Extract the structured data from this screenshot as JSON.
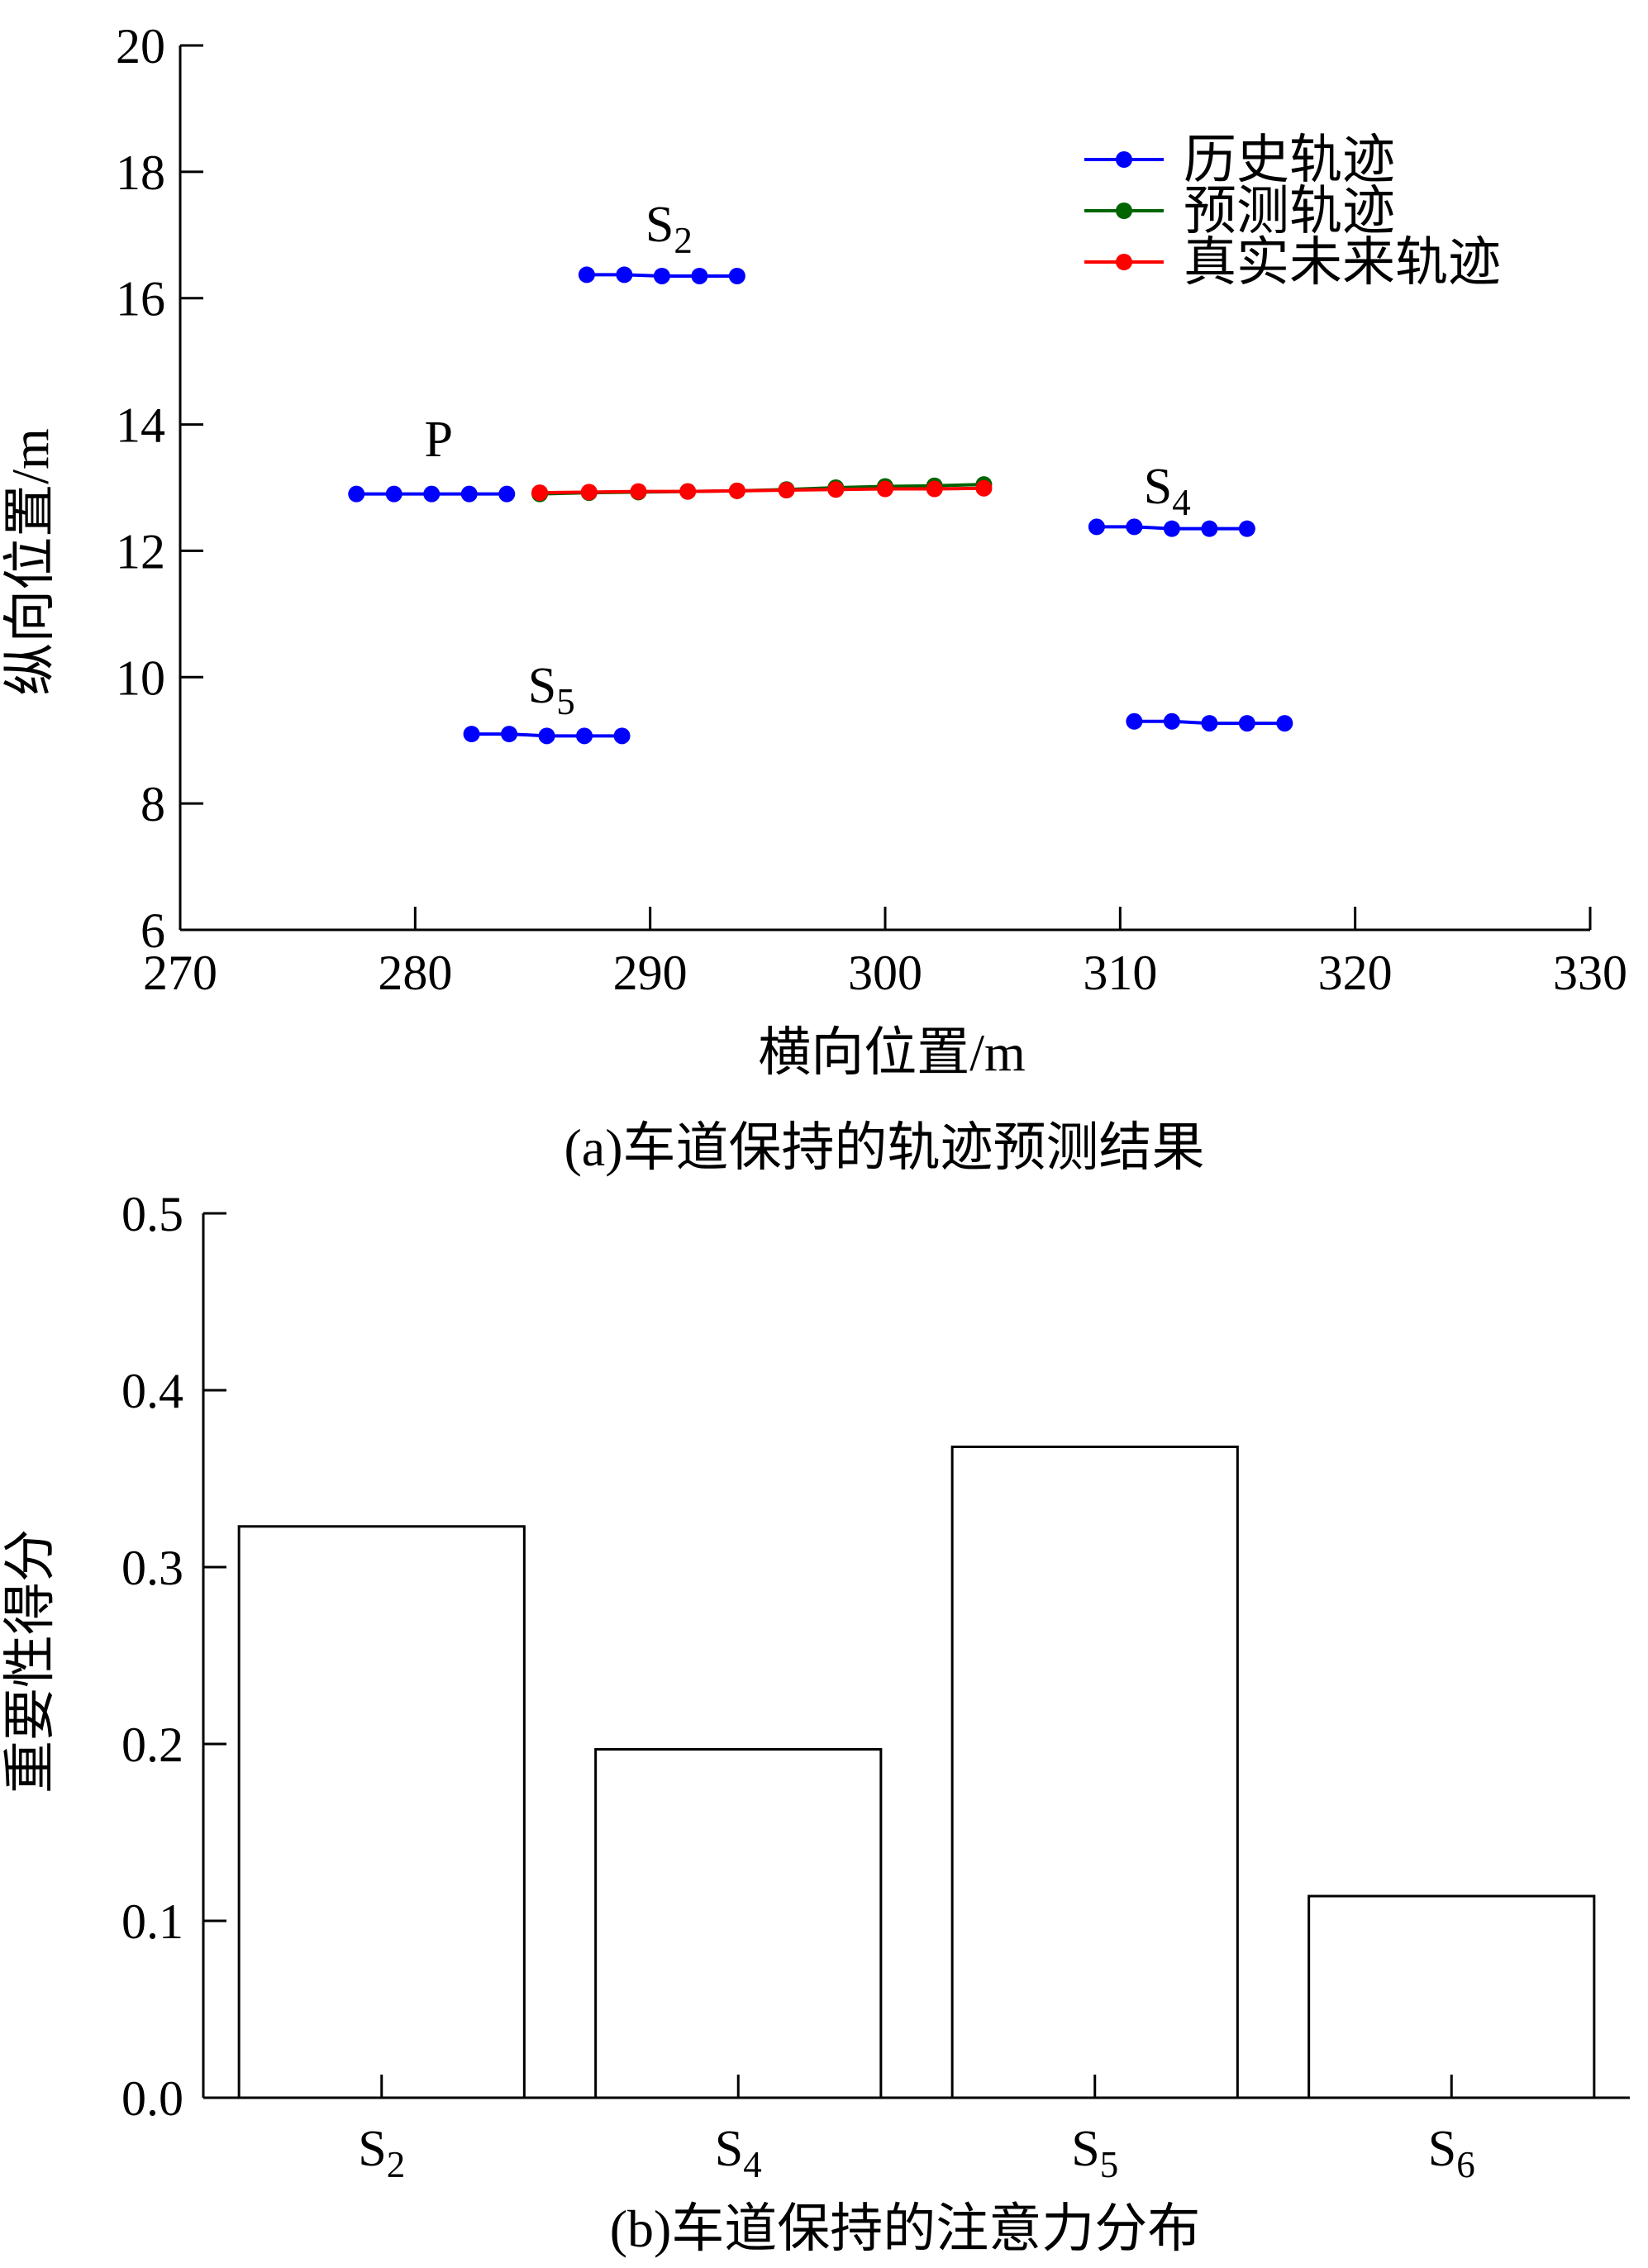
{
  "chart_data": [
    {
      "type": "line",
      "xlabel": "横向位置/m",
      "ylabel": "纵向位置/m",
      "caption": "(a)车道保持的轨迹预测结果",
      "xlim": [
        270,
        330
      ],
      "ylim": [
        6,
        20
      ],
      "xticks": [
        270,
        280,
        290,
        300,
        310,
        320,
        330
      ],
      "yticks": [
        6,
        8,
        10,
        12,
        14,
        16,
        18,
        20
      ],
      "xtick_labels": [
        "270",
        "280",
        "290",
        "300",
        "310",
        "320",
        "330"
      ],
      "ytick_labels": [
        "6",
        "8",
        "10",
        "12",
        "14",
        "16",
        "18",
        "20"
      ],
      "grid": false,
      "legend_position": "top-right",
      "legend": [
        {
          "label": "历史轨迹",
          "color": "#0000ff"
        },
        {
          "label": "预测轨迹",
          "color": "#006400"
        },
        {
          "label": "真实未来轨迹",
          "color": "#ff0000"
        }
      ],
      "series": [
        {
          "group": "历史轨迹",
          "color": "#0000ff",
          "x": [
            277.5,
            279.1,
            280.7,
            282.3,
            283.9
          ],
          "y": [
            12.9,
            12.9,
            12.9,
            12.9,
            12.9
          ]
        },
        {
          "group": "历史轨迹",
          "color": "#0000ff",
          "x": [
            287.3,
            288.9,
            290.5,
            292.1,
            293.7
          ],
          "y": [
            16.37,
            16.37,
            16.35,
            16.35,
            16.35
          ]
        },
        {
          "group": "历史轨迹",
          "color": "#0000ff",
          "x": [
            309.0,
            310.6,
            312.2,
            313.8,
            315.4
          ],
          "y": [
            12.38,
            12.38,
            12.35,
            12.35,
            12.35
          ]
        },
        {
          "group": "历史轨迹",
          "color": "#0000ff",
          "x": [
            282.4,
            284.0,
            285.6,
            287.2,
            288.8
          ],
          "y": [
            9.1,
            9.1,
            9.07,
            9.07,
            9.07
          ]
        },
        {
          "group": "历史轨迹",
          "color": "#0000ff",
          "x": [
            310.6,
            312.2,
            313.8,
            315.4,
            317.0
          ],
          "y": [
            9.3,
            9.3,
            9.27,
            9.27,
            9.27
          ]
        },
        {
          "group": "预测轨迹",
          "color": "#006400",
          "x": [
            285.3,
            287.4,
            289.5,
            291.6,
            293.7,
            295.8,
            297.9,
            300.0,
            302.1,
            304.2
          ],
          "y": [
            12.9,
            12.92,
            12.93,
            12.94,
            12.95,
            12.97,
            13.0,
            13.02,
            13.03,
            13.05
          ]
        },
        {
          "group": "真实未来轨迹",
          "color": "#ff0000",
          "x": [
            285.3,
            287.4,
            289.5,
            291.6,
            293.7,
            295.8,
            297.9,
            300.0,
            302.1,
            304.2
          ],
          "y": [
            12.92,
            12.93,
            12.94,
            12.94,
            12.95,
            12.96,
            12.97,
            12.98,
            12.98,
            12.99
          ]
        }
      ],
      "annotations": [
        {
          "text": "S",
          "subscript": "2",
          "x": 290.8,
          "y": 16.9
        },
        {
          "text": "P",
          "subscript": "",
          "x": 281.0,
          "y": 13.5
        },
        {
          "text": "S",
          "subscript": "4",
          "x": 312.0,
          "y": 12.75
        },
        {
          "text": "S",
          "subscript": "5",
          "x": 285.8,
          "y": 9.6
        }
      ]
    },
    {
      "type": "bar",
      "ylabel": "重要性得分",
      "caption": "(b)车道保持的注意力分布",
      "categories": [
        {
          "base": "S",
          "sub": "2"
        },
        {
          "base": "S",
          "sub": "4"
        },
        {
          "base": "S",
          "sub": "5"
        },
        {
          "base": "S",
          "sub": "6"
        }
      ],
      "values": [
        0.323,
        0.197,
        0.368,
        0.114
      ],
      "ylim": [
        0.0,
        0.5
      ],
      "yticks": [
        0.0,
        0.1,
        0.2,
        0.3,
        0.4,
        0.5
      ],
      "ytick_labels": [
        "0.0",
        "0.1",
        "0.2",
        "0.3",
        "0.4",
        "0.5"
      ],
      "grid": false,
      "bar_fill": "#ffffff",
      "bar_stroke": "#000000"
    }
  ]
}
